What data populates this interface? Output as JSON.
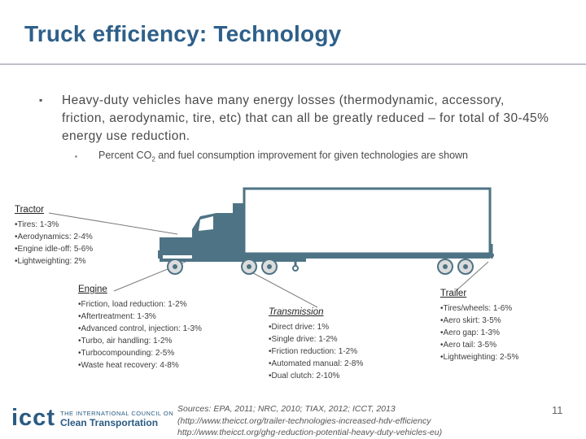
{
  "title": "Truck efficiency: Technology",
  "bullet1": "Heavy-duty vehicles have many energy losses (thermodynamic, accessory, friction, aerodynamic, tire, etc) that can all be greatly reduced – for total of 30-45% energy use reduction.",
  "bullet2_pre": "Percent CO",
  "bullet2_sub": "2",
  "bullet2_post": " and fuel consumption improvement for given technologies are shown",
  "tractor": {
    "heading": "Tractor",
    "items": [
      "Tires: 1-3%",
      "Aerodynamics: 2-4%",
      "Engine idle-off: 5-6%",
      "Lightweighting: 2%"
    ]
  },
  "engine": {
    "heading": "Engine",
    "items": [
      "Friction, load reduction: 1-2%",
      "Aftertreatment: 1-3%",
      "Advanced control, injection: 1-3%",
      "Turbo, air handling: 1-2%",
      "Turbocompounding: 2-5%",
      "Waste heat recovery: 4-8%"
    ]
  },
  "transmission": {
    "heading": "Transmission",
    "items": [
      "Direct drive: 1%",
      "Single drive: 1-2%",
      "Friction reduction: 1-2%",
      "Automated manual: 2-8%",
      "Dual clutch: 2-10%"
    ]
  },
  "trailer": {
    "heading": "Trailer",
    "items": [
      "Tires/wheels: 1-6%",
      "Aero skirt: 3-5%",
      "Aero gap: 1-3%",
      "Aero tail: 3-5%",
      "Lightweighting: 2-5%"
    ]
  },
  "sources": {
    "line1": "Sources: EPA, 2011; NRC, 2010; TIAX, 2012; ICCT, 2013",
    "line2": "(http://www.theicct.org/trailer-technologies-increased-hdv-efficiency",
    "line3": "http://www.theicct.org/ghg-reduction-potential-heavy-duty-vehicles-eu)"
  },
  "logo": {
    "acronym": "icct",
    "line1": "THE INTERNATIONAL COUNCIL ON",
    "line2": "Clean Transportation"
  },
  "page_number": "11",
  "colors": {
    "title": "#2e5f8a",
    "truck": "#4e7385",
    "trailer_fill": "#ffffff"
  }
}
